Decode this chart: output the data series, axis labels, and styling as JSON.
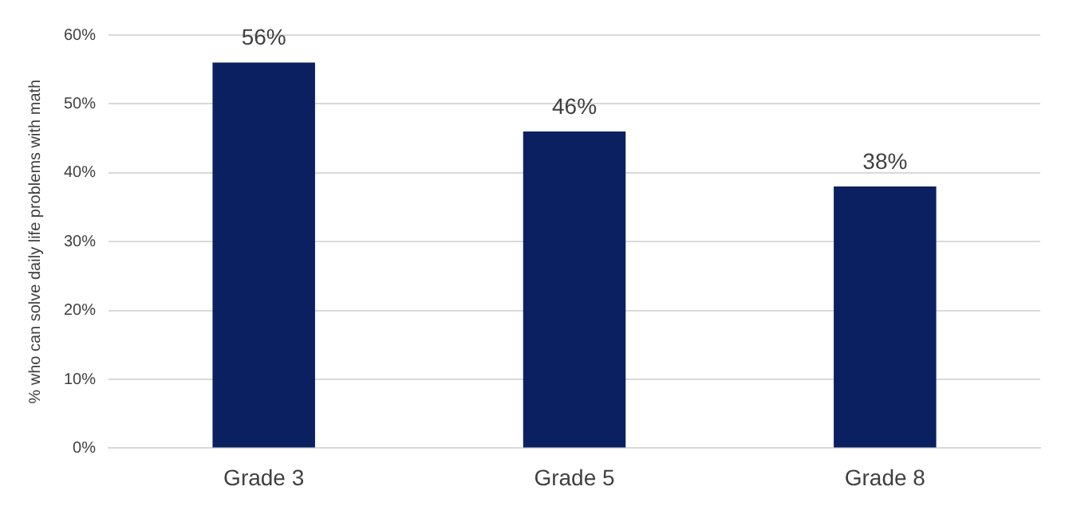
{
  "chart_data": {
    "type": "bar",
    "ylabel": "% who can solve daily life problems with math",
    "categories": [
      "Grade 3",
      "Grade 5",
      "Grade 8"
    ],
    "values": [
      56,
      46,
      38
    ],
    "value_labels": [
      "56%",
      "46%",
      "38%"
    ],
    "color": "#0b2060",
    "ylim": [
      0,
      60
    ],
    "yticks": [
      {
        "value": 0,
        "label": "0%"
      },
      {
        "value": 10,
        "label": "10%"
      },
      {
        "value": 20,
        "label": "20%"
      },
      {
        "value": 30,
        "label": "30%"
      },
      {
        "value": 40,
        "label": "40%"
      },
      {
        "value": 50,
        "label": "50%"
      },
      {
        "value": 60,
        "label": "60%"
      }
    ],
    "grid": "y",
    "legend": false
  }
}
